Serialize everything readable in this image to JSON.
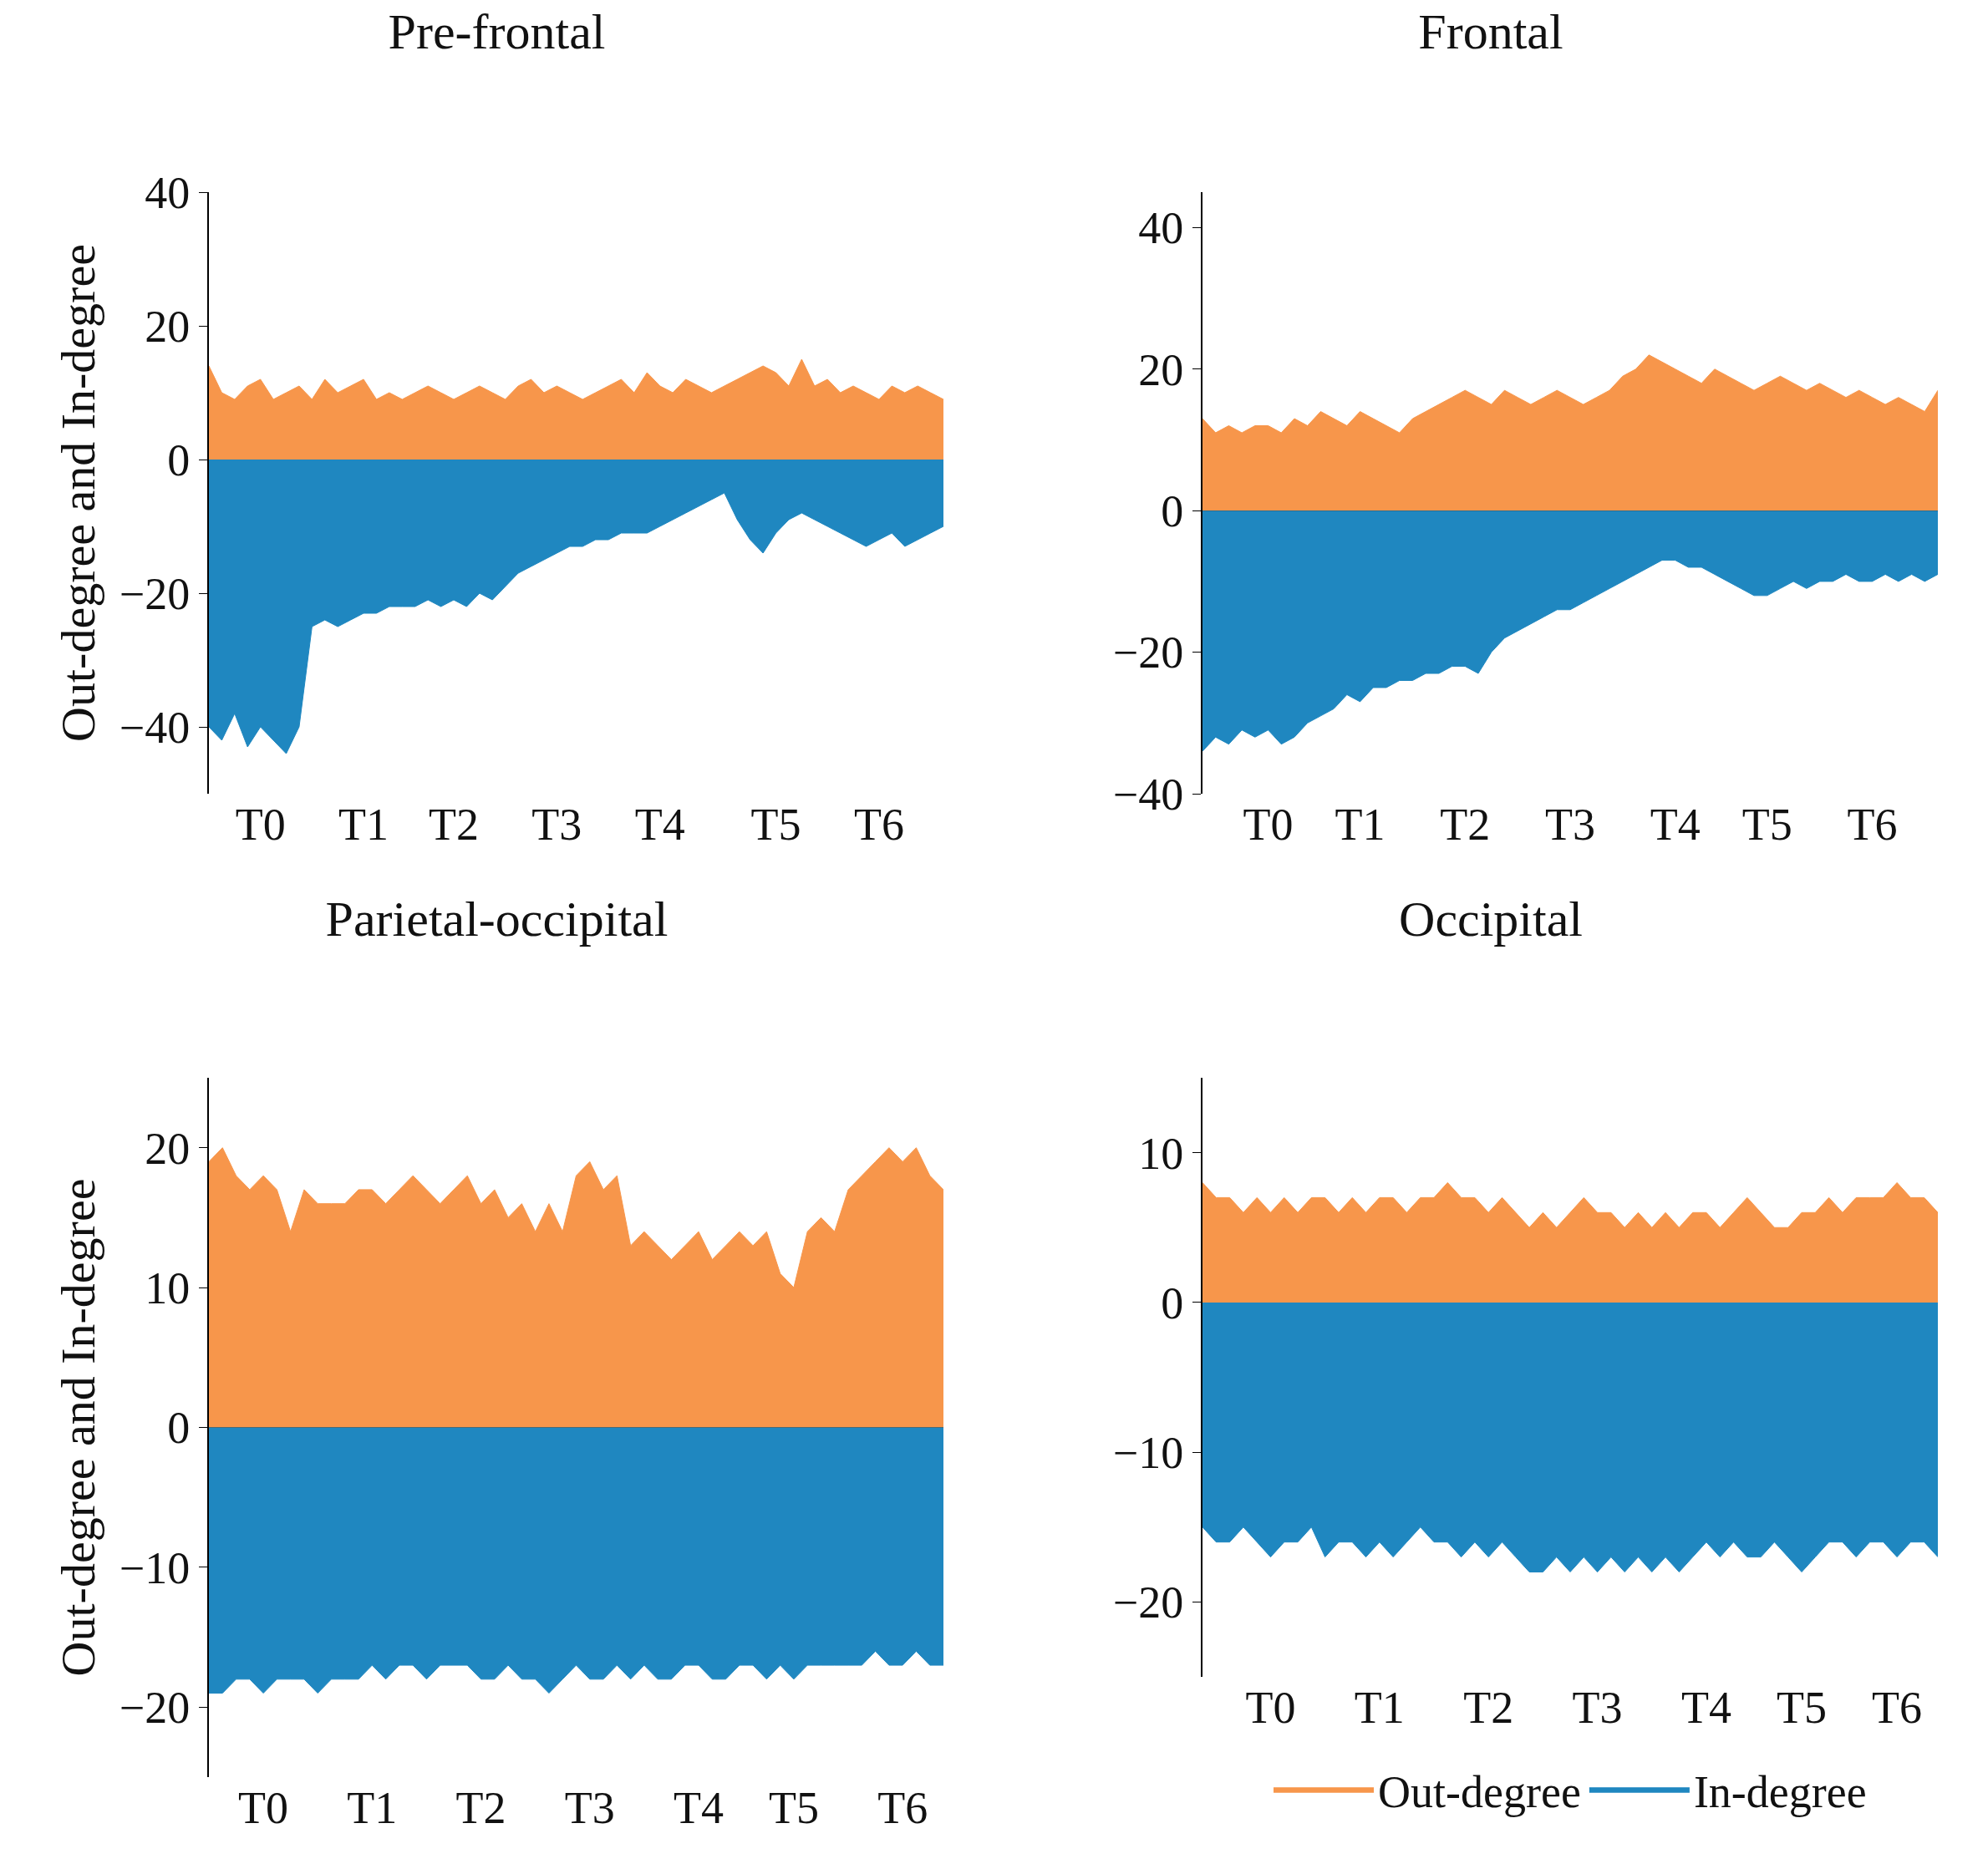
{
  "chart_data": [
    {
      "type": "area",
      "title": "Pre-frontal",
      "ylabel": "Out-degree and In-degree",
      "ylim": [
        -50,
        40
      ],
      "yticks": [
        -40,
        -20,
        0,
        20,
        40
      ],
      "categories": [
        null,
        null,
        null,
        null,
        "T0",
        null,
        null,
        null,
        null,
        null,
        null,
        null,
        "T1",
        null,
        null,
        null,
        null,
        null,
        null,
        "T2",
        null,
        null,
        null,
        null,
        null,
        null,
        null,
        "T3",
        null,
        null,
        null,
        null,
        null,
        null,
        null,
        "T4",
        null,
        null,
        null,
        null,
        null,
        null,
        null,
        null,
        "T5",
        null,
        null,
        null,
        null,
        null,
        null,
        null,
        "T6",
        null,
        null,
        null,
        null,
        null
      ],
      "series": [
        {
          "color": "#f7964b",
          "values": [
            14,
            10,
            9,
            11,
            12,
            9,
            10,
            11,
            9,
            12,
            10,
            11,
            12,
            9,
            10,
            9,
            10,
            11,
            10,
            9,
            10,
            11,
            10,
            9,
            11,
            12,
            10,
            11,
            10,
            9,
            10,
            11,
            12,
            10,
            13,
            11,
            10,
            12,
            11,
            10,
            11,
            12,
            13,
            14,
            13,
            11,
            15,
            11,
            12,
            10,
            11,
            10,
            9,
            11,
            10,
            11,
            10,
            9
          ]
        },
        {
          "color": "#1f87c0",
          "values": [
            -40,
            -42,
            -38,
            -43,
            -40,
            -42,
            -44,
            -40,
            -25,
            -24,
            -25,
            -24,
            -23,
            -23,
            -22,
            -22,
            -22,
            -21,
            -22,
            -21,
            -22,
            -20,
            -21,
            -19,
            -17,
            -16,
            -15,
            -14,
            -13,
            -13,
            -12,
            -12,
            -11,
            -11,
            -11,
            -10,
            -9,
            -8,
            -7,
            -6,
            -5,
            -9,
            -12,
            -14,
            -11,
            -9,
            -8,
            -9,
            -10,
            -11,
            -12,
            -13,
            -12,
            -11,
            -13,
            -12,
            -11,
            -10
          ]
        }
      ]
    },
    {
      "type": "area",
      "title": "Frontal",
      "ylim": [
        -40,
        45
      ],
      "yticks": [
        -40,
        -20,
        0,
        20,
        40
      ],
      "categories": [
        null,
        null,
        null,
        null,
        null,
        "T0",
        null,
        null,
        null,
        null,
        null,
        null,
        "T1",
        null,
        null,
        null,
        null,
        null,
        null,
        null,
        "T2",
        null,
        null,
        null,
        null,
        null,
        null,
        null,
        "T3",
        null,
        null,
        null,
        null,
        null,
        null,
        null,
        "T4",
        null,
        null,
        null,
        null,
        null,
        null,
        "T5",
        null,
        null,
        null,
        null,
        null,
        null,
        null,
        "T6",
        null,
        null,
        null,
        null,
        null
      ],
      "series": [
        {
          "color": "#f7964b",
          "values": [
            13,
            11,
            12,
            11,
            12,
            12,
            11,
            13,
            12,
            14,
            13,
            12,
            14,
            13,
            12,
            11,
            13,
            14,
            15,
            16,
            17,
            16,
            15,
            17,
            16,
            15,
            16,
            17,
            16,
            15,
            16,
            17,
            19,
            20,
            22,
            21,
            20,
            19,
            18,
            20,
            19,
            18,
            17,
            18,
            19,
            18,
            17,
            18,
            17,
            16,
            17,
            16,
            15,
            16,
            15,
            14,
            17
          ]
        },
        {
          "color": "#1f87c0",
          "values": [
            -34,
            -32,
            -33,
            -31,
            -32,
            -31,
            -33,
            -32,
            -30,
            -29,
            -28,
            -26,
            -27,
            -25,
            -25,
            -24,
            -24,
            -23,
            -23,
            -22,
            -22,
            -23,
            -20,
            -18,
            -17,
            -16,
            -15,
            -14,
            -14,
            -13,
            -12,
            -11,
            -10,
            -9,
            -8,
            -7,
            -7,
            -8,
            -8,
            -9,
            -10,
            -11,
            -12,
            -12,
            -11,
            -10,
            -11,
            -10,
            -10,
            -9,
            -10,
            -10,
            -9,
            -10,
            -9,
            -10,
            -9
          ]
        }
      ]
    },
    {
      "type": "area",
      "title": "Parietal-occipital",
      "ylabel": "Out-degree and In-degree",
      "ylim": [
        -25,
        25
      ],
      "yticks": [
        -20,
        -10,
        0,
        10,
        20
      ],
      "categories": [
        null,
        null,
        null,
        null,
        "T0",
        null,
        null,
        null,
        null,
        null,
        null,
        null,
        "T1",
        null,
        null,
        null,
        null,
        null,
        null,
        null,
        "T2",
        null,
        null,
        null,
        null,
        null,
        null,
        null,
        "T3",
        null,
        null,
        null,
        null,
        null,
        null,
        null,
        "T4",
        null,
        null,
        null,
        null,
        null,
        null,
        "T5",
        null,
        null,
        null,
        null,
        null,
        null,
        null,
        "T6",
        null,
        null,
        null
      ],
      "series": [
        {
          "color": "#f7964b",
          "values": [
            19,
            20,
            18,
            17,
            18,
            17,
            14,
            17,
            16,
            16,
            16,
            17,
            17,
            16,
            17,
            18,
            17,
            16,
            17,
            18,
            16,
            17,
            15,
            16,
            14,
            16,
            14,
            18,
            19,
            17,
            18,
            13,
            14,
            13,
            12,
            13,
            14,
            12,
            13,
            14,
            13,
            14,
            11,
            10,
            14,
            15,
            14,
            17,
            18,
            19,
            20,
            19,
            20,
            18,
            17
          ]
        },
        {
          "color": "#1f87c0",
          "values": [
            -19,
            -19,
            -18,
            -18,
            -19,
            -18,
            -18,
            -18,
            -19,
            -18,
            -18,
            -18,
            -17,
            -18,
            -17,
            -17,
            -18,
            -17,
            -17,
            -17,
            -18,
            -18,
            -17,
            -18,
            -18,
            -19,
            -18,
            -17,
            -18,
            -18,
            -17,
            -18,
            -17,
            -18,
            -18,
            -17,
            -17,
            -18,
            -18,
            -17,
            -17,
            -18,
            -17,
            -18,
            -17,
            -17,
            -17,
            -17,
            -17,
            -16,
            -17,
            -17,
            -16,
            -17,
            -17
          ]
        }
      ]
    },
    {
      "type": "area",
      "title": "Occipital",
      "ylim": [
        -25,
        15
      ],
      "yticks": [
        -20,
        -10,
        0,
        10
      ],
      "legend": "bottom",
      "categories": [
        null,
        null,
        null,
        null,
        null,
        "T0",
        null,
        null,
        null,
        null,
        null,
        null,
        null,
        "T1",
        null,
        null,
        null,
        null,
        null,
        null,
        null,
        "T2",
        null,
        null,
        null,
        null,
        null,
        null,
        null,
        "T3",
        null,
        null,
        null,
        null,
        null,
        null,
        null,
        "T4",
        null,
        null,
        null,
        null,
        null,
        null,
        "T5",
        null,
        null,
        null,
        null,
        null,
        null,
        "T6",
        null,
        null,
        null
      ],
      "series": [
        {
          "name": "Out-degree",
          "color": "#f7964b",
          "values": [
            8,
            7,
            7,
            6,
            7,
            6,
            7,
            6,
            7,
            7,
            6,
            7,
            6,
            7,
            7,
            6,
            7,
            7,
            8,
            7,
            7,
            6,
            7,
            6,
            5,
            6,
            5,
            6,
            7,
            6,
            6,
            5,
            6,
            5,
            6,
            5,
            6,
            6,
            5,
            6,
            7,
            6,
            5,
            5,
            6,
            6,
            7,
            6,
            7,
            7,
            7,
            8,
            7,
            7,
            6
          ]
        },
        {
          "name": "In-degree",
          "color": "#1f87c0",
          "values": [
            -15,
            -16,
            -16,
            -15,
            -16,
            -17,
            -16,
            -16,
            -15,
            -17,
            -16,
            -16,
            -17,
            -16,
            -17,
            -16,
            -15,
            -16,
            -16,
            -17,
            -16,
            -17,
            -16,
            -17,
            -18,
            -18,
            -17,
            -18,
            -17,
            -18,
            -17,
            -18,
            -17,
            -18,
            -17,
            -18,
            -17,
            -16,
            -17,
            -16,
            -17,
            -17,
            -16,
            -17,
            -18,
            -17,
            -16,
            -16,
            -17,
            -16,
            -16,
            -17,
            -16,
            -16,
            -17
          ]
        }
      ]
    }
  ]
}
